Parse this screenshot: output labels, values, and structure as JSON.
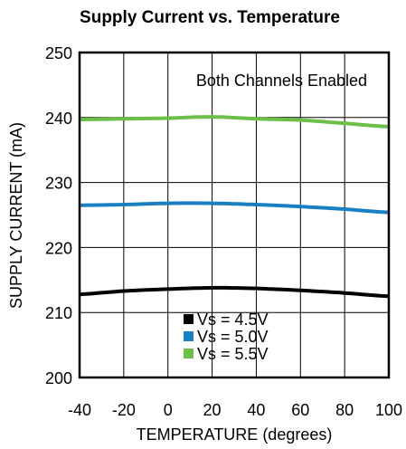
{
  "chart_data": {
    "type": "line",
    "title": "Supply Current vs. Temperature",
    "xlabel": "TEMPERATURE (degrees)",
    "ylabel": "SUPPLY CURRENT (mA)",
    "annotation": "Both Channels Enabled",
    "xlim": [
      -40,
      100
    ],
    "ylim": [
      200,
      250
    ],
    "xticks": [
      -40,
      -20,
      0,
      20,
      40,
      60,
      80,
      100
    ],
    "yticks": [
      200,
      210,
      220,
      230,
      240,
      250
    ],
    "xtick_labels": [
      "-40",
      "-20",
      "0",
      "20",
      "40",
      "60",
      "80",
      "100"
    ],
    "ytick_labels": [
      "200",
      "210",
      "220",
      "230",
      "240",
      "250"
    ],
    "grid": true,
    "legend_position": "bottom-center",
    "x": [
      -40,
      -20,
      0,
      20,
      40,
      60,
      80,
      100
    ],
    "series": [
      {
        "name": "Vs = 4.5V",
        "color": "#000000",
        "values": [
          212.8,
          213.3,
          213.6,
          213.8,
          213.7,
          213.4,
          213.0,
          212.5
        ]
      },
      {
        "name": "Vs = 5.0V",
        "color": "#1a7fc0",
        "values": [
          226.5,
          226.6,
          226.8,
          226.8,
          226.6,
          226.3,
          225.9,
          225.4
        ]
      },
      {
        "name": "Vs = 5.5V",
        "color": "#6cc04a",
        "values": [
          239.7,
          239.8,
          239.9,
          240.1,
          239.8,
          239.6,
          239.1,
          238.6
        ]
      }
    ]
  }
}
